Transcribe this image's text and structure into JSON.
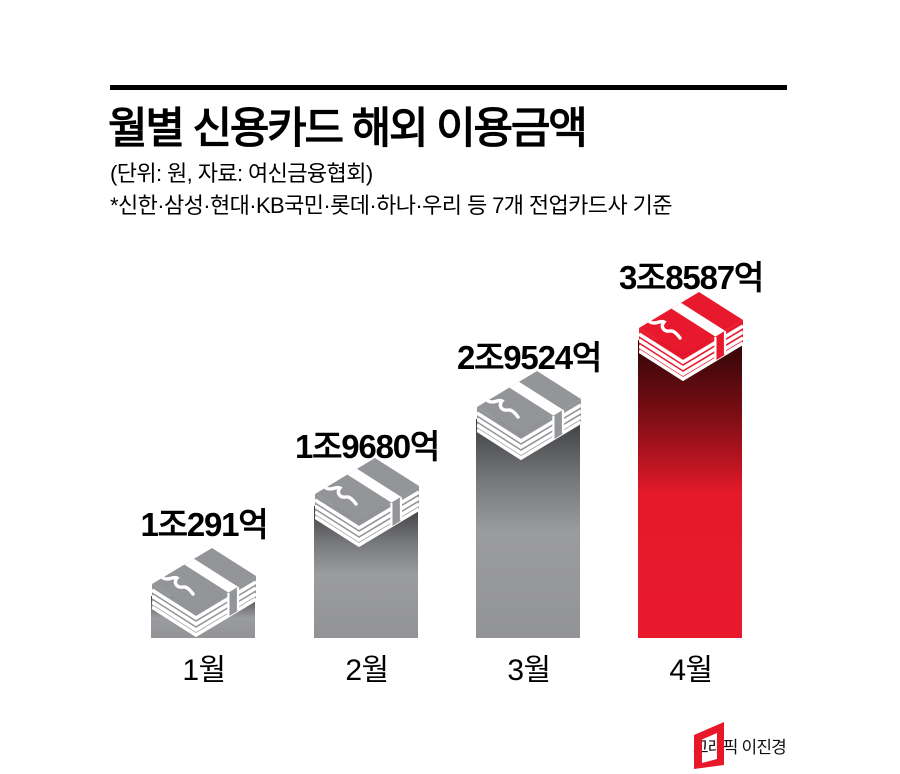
{
  "header": {
    "title": "월별 신용카드 해외 이용금액",
    "unit_source": "(단위: 원, 자료: 여신금융협회)",
    "footnote": "*신한·삼성·현대·KB국민·롯데·하나·우리 등 7개 전업카드사 기준"
  },
  "chart_data": {
    "type": "bar",
    "title": "월별 신용카드 해외 이용금액",
    "unit": "원",
    "source": "여신금융협회",
    "categories": [
      "1월",
      "2월",
      "3월",
      "4월"
    ],
    "values": [
      10291,
      19680,
      29524,
      38587
    ],
    "value_unit": "억",
    "value_labels": [
      "1조291억",
      "1조9680억",
      "2조9524억",
      "3조8587억"
    ],
    "highlighted_category": "4월",
    "bar_colors": [
      "#939598",
      "#939598",
      "#939598",
      "#e8192c"
    ],
    "grid": false,
    "legend": false,
    "icon": "money-stack"
  },
  "footer": {
    "credit": "그래픽 이진경"
  },
  "colors": {
    "accent_red": "#e8192c",
    "bar_gray": "#939598",
    "text_black": "#000000"
  }
}
